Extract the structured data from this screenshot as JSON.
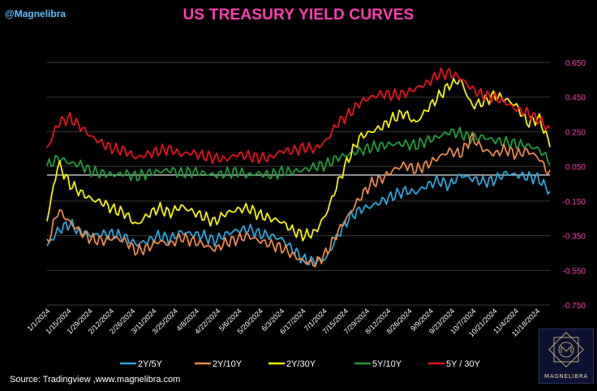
{
  "header": {
    "handle": "@Magnelibra",
    "title": "US TREASURY YIELD CURVES"
  },
  "footer": {
    "source": "Source:  Tradingview ,www.magnelibra.com",
    "logo_text": "MAGNELIBRA"
  },
  "colors": {
    "background": "#000000",
    "title": "#ff3fb0",
    "handle": "#5bc0ff",
    "axis_text": "#ff3fb0"
  },
  "chart_data": {
    "type": "line",
    "title": "US TREASURY YIELD CURVES",
    "xlabel": "",
    "ylabel": "",
    "ylim": [
      -0.75,
      0.7
    ],
    "y_ticks": [
      0.65,
      0.45,
      0.25,
      0.05,
      -0.15,
      -0.35,
      -0.55,
      -0.75
    ],
    "y_tick_labels": [
      "0.650",
      "0.450",
      "0.250",
      "0.050",
      "-0.150",
      "-0.350",
      "-0.550",
      "-0.750"
    ],
    "x_tick_labels": [
      "1/1/2024",
      "1/15/2024",
      "1/29/2024",
      "2/12/2024",
      "2/26/2024",
      "3/11/2024",
      "3/25/2024",
      "4/8/2024",
      "4/22/2024",
      "5/6/2024",
      "5/20/2024",
      "6/3/2024",
      "6/17/2024",
      "7/1/2024",
      "7/15/2024",
      "7/29/2024",
      "8/12/2024",
      "8/26/2024",
      "9/9/2024",
      "9/23/2024",
      "10/7/2024",
      "10/21/2024",
      "11/4/2024",
      "11/18/2024"
    ],
    "zero_line": 0.0,
    "grid": true,
    "legend_position": "bottom",
    "series": [
      {
        "name": "2Y/5Y",
        "color": "#2aa7e0",
        "values": [
          -0.41,
          -0.32,
          -0.28,
          -0.33,
          -0.35,
          -0.34,
          -0.34,
          -0.36,
          -0.4,
          -0.38,
          -0.35,
          -0.37,
          -0.33,
          -0.34,
          -0.35,
          -0.38,
          -0.34,
          -0.32,
          -0.31,
          -0.34,
          -0.35,
          -0.37,
          -0.43,
          -0.49,
          -0.5,
          -0.48,
          -0.35,
          -0.25,
          -0.2,
          -0.18,
          -0.15,
          -0.12,
          -0.09,
          -0.1,
          -0.06,
          -0.03,
          -0.06,
          0.0,
          -0.02,
          -0.04,
          -0.03,
          0.01,
          0.0,
          -0.01,
          -0.02,
          -0.1
        ]
      },
      {
        "name": "2Y/10Y",
        "color": "#f0874a",
        "values": [
          -0.4,
          -0.2,
          -0.27,
          -0.33,
          -0.37,
          -0.38,
          -0.36,
          -0.38,
          -0.44,
          -0.42,
          -0.38,
          -0.4,
          -0.36,
          -0.38,
          -0.4,
          -0.43,
          -0.39,
          -0.37,
          -0.35,
          -0.38,
          -0.4,
          -0.42,
          -0.46,
          -0.5,
          -0.51,
          -0.45,
          -0.33,
          -0.23,
          -0.13,
          -0.05,
          -0.02,
          0.03,
          0.06,
          0.03,
          0.06,
          0.1,
          0.14,
          0.12,
          0.22,
          0.15,
          0.12,
          0.15,
          0.12,
          0.14,
          0.1,
          0.0
        ]
      },
      {
        "name": "2Y/30Y",
        "color": "#f5f500",
        "values": [
          -0.26,
          0.07,
          -0.05,
          -0.1,
          -0.14,
          -0.16,
          -0.2,
          -0.22,
          -0.29,
          -0.23,
          -0.19,
          -0.22,
          -0.18,
          -0.21,
          -0.24,
          -0.27,
          -0.22,
          -0.2,
          -0.19,
          -0.23,
          -0.25,
          -0.27,
          -0.32,
          -0.35,
          -0.33,
          -0.22,
          -0.05,
          0.1,
          0.22,
          0.25,
          0.28,
          0.33,
          0.36,
          0.3,
          0.38,
          0.45,
          0.52,
          0.55,
          0.4,
          0.42,
          0.46,
          0.44,
          0.4,
          0.3,
          0.33,
          0.18
        ]
      },
      {
        "name": "5Y/10Y",
        "color": "#1e9e3a",
        "values": [
          0.05,
          0.1,
          0.07,
          0.06,
          0.02,
          0.01,
          0.0,
          0.01,
          -0.01,
          0.01,
          0.02,
          0.03,
          0.01,
          0.02,
          0.01,
          0.0,
          0.01,
          0.02,
          0.0,
          0.01,
          0.0,
          0.02,
          0.02,
          0.03,
          0.05,
          0.06,
          0.1,
          0.12,
          0.14,
          0.16,
          0.17,
          0.18,
          0.18,
          0.17,
          0.2,
          0.22,
          0.25,
          0.24,
          0.21,
          0.22,
          0.2,
          0.19,
          0.18,
          0.17,
          0.15,
          0.08
        ]
      },
      {
        "name": "5Y / 30Y",
        "color": "#e8121c",
        "values": [
          0.15,
          0.3,
          0.33,
          0.28,
          0.22,
          0.18,
          0.15,
          0.14,
          0.1,
          0.12,
          0.14,
          0.15,
          0.12,
          0.13,
          0.11,
          0.1,
          0.09,
          0.12,
          0.11,
          0.1,
          0.1,
          0.14,
          0.14,
          0.16,
          0.15,
          0.2,
          0.3,
          0.35,
          0.42,
          0.45,
          0.47,
          0.46,
          0.47,
          0.5,
          0.53,
          0.58,
          0.59,
          0.56,
          0.5,
          0.46,
          0.45,
          0.42,
          0.38,
          0.36,
          0.32,
          0.26
        ]
      }
    ]
  }
}
